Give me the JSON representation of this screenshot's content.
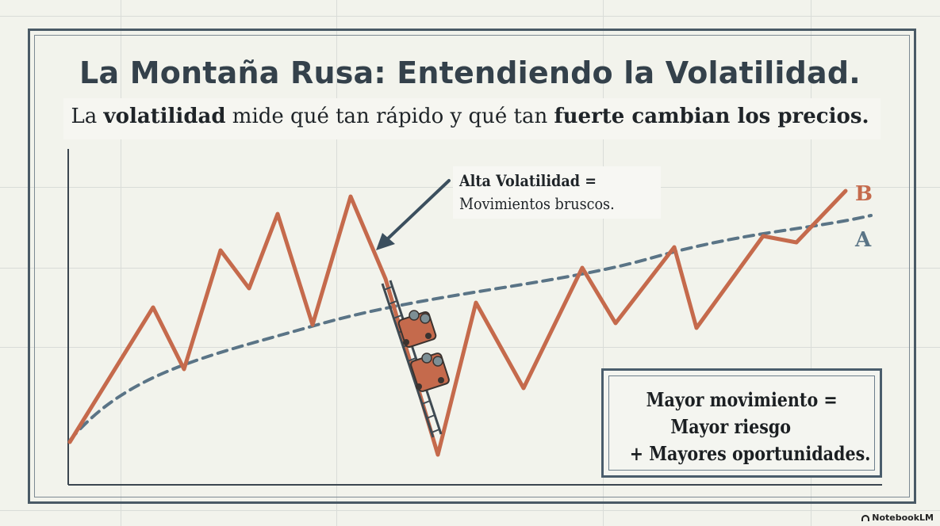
{
  "title": "La Montaña Rusa: Entendiendo la Volatilidad.",
  "subtitle": {
    "p1": "La ",
    "b1": "volatilidad",
    "p2": " mide qué tan rápido y qué tan ",
    "b2": "fuerte cambian los precios."
  },
  "callout": {
    "line1": "Alta Volatilidad =",
    "line2": "Movimientos bruscos."
  },
  "series_labels": {
    "b": "B",
    "a": "A"
  },
  "summary": {
    "line1": "Mayor movimiento =",
    "line2": "Mayor riesgo",
    "line3": "+ Mayores oportunidades."
  },
  "brand": "NotebookLM",
  "colors": {
    "series_b": "#c56a4c",
    "series_a": "#5a7486",
    "axis": "#3b4650",
    "title": "#34414b"
  },
  "icons": [
    "roller-coaster-cart-icon",
    "arrow-icon",
    "notebooklm-logo-icon"
  ]
}
